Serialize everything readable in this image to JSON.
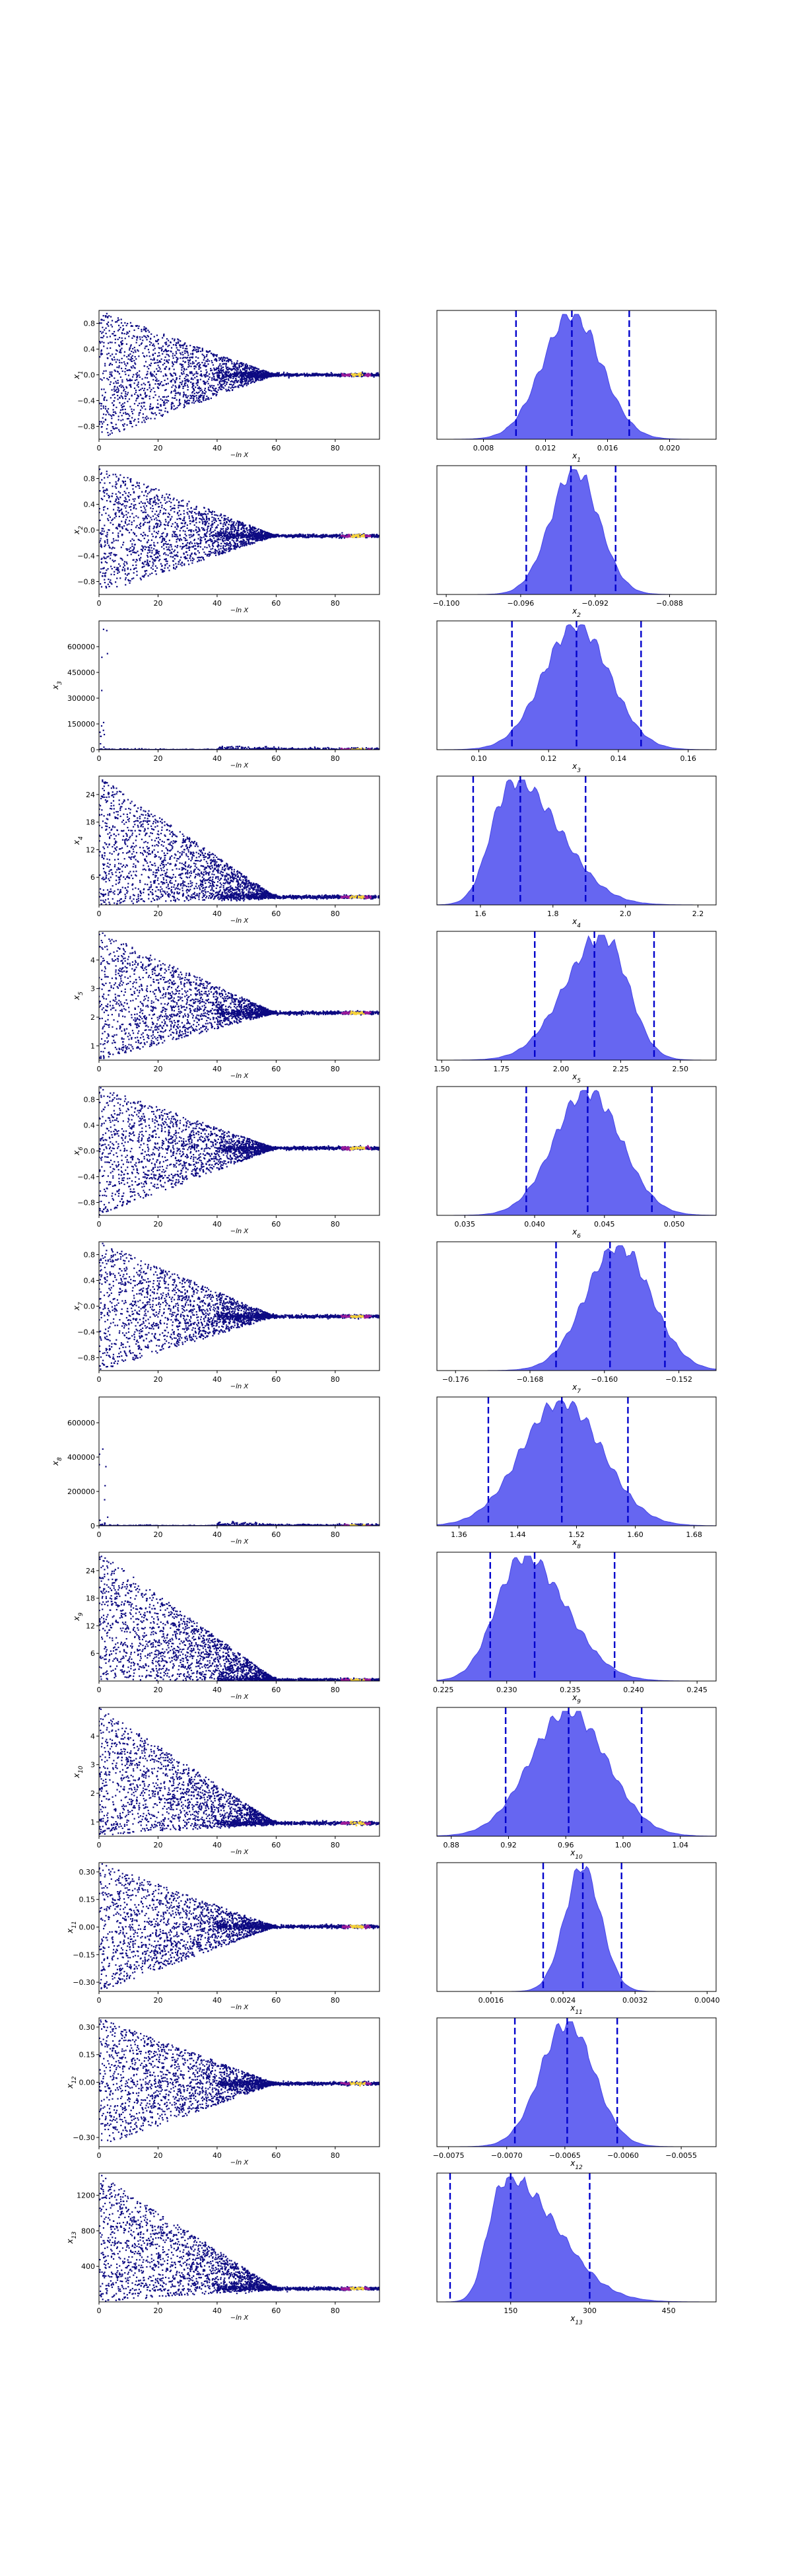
{
  "colors": {
    "trace_low": "#0d0a82",
    "trace_mid": "#9c1b9a",
    "trace_high": "#f6d33a",
    "hist_fill": "#5a5af0",
    "hist_edge": "#3636e6",
    "quantile_line": "#0000cc"
  },
  "chart_data": [
    {
      "type": "scatter",
      "param": "x1",
      "xlabel": "−ln X",
      "ylabel": "x1",
      "ylabel_sub": "1",
      "xticks": [
        0,
        20,
        40,
        60,
        80
      ],
      "yticks": [
        "0.8",
        "0.4",
        "0.0",
        "−0.4",
        "−0.8"
      ],
      "ytick_values": [
        0.8,
        0.4,
        0,
        -0.4,
        -0.8
      ],
      "xlim": [
        0,
        95
      ],
      "ylim": [
        -1,
        1
      ],
      "converged_value": 0.0
    },
    {
      "type": "area",
      "param": "x1",
      "xlabel": "x1",
      "xlabel_sub": "1",
      "xticks": [
        "0.008",
        "0.012",
        "0.016",
        "0.020"
      ],
      "xtick_values": [
        0.008,
        0.012,
        0.016,
        0.02
      ],
      "xlim": [
        0.005,
        0.023
      ],
      "mode": 0.0137,
      "sigma": 0.0019,
      "skew": 0,
      "quantiles": [
        0.0101,
        0.0137,
        0.0174
      ]
    },
    {
      "type": "scatter",
      "param": "x2",
      "xlabel": "−ln X",
      "ylabel": "x2",
      "ylabel_sub": "2",
      "xticks": [
        0,
        20,
        40,
        60,
        80
      ],
      "yticks": [
        "0.8",
        "0.4",
        "0.0",
        "−0.4",
        "−0.8"
      ],
      "ytick_values": [
        0.8,
        0.4,
        0,
        -0.4,
        -0.8
      ],
      "xlim": [
        0,
        95
      ],
      "ylim": [
        -1,
        1
      ],
      "converged_value": -0.09
    },
    {
      "type": "area",
      "param": "x2",
      "xlabel": "x2",
      "xlabel_sub": "2",
      "xticks": [
        "−0.100",
        "−0.096",
        "−0.092",
        "−0.088"
      ],
      "xtick_values": [
        -0.1,
        -0.096,
        -0.092,
        -0.088
      ],
      "xlim": [
        -0.1005,
        -0.0855
      ],
      "mode": -0.0931,
      "sigma": 0.0013,
      "skew": 0,
      "quantiles": [
        -0.0957,
        -0.0933,
        -0.0909
      ]
    },
    {
      "type": "scatter",
      "param": "x3",
      "xlabel": "−ln X",
      "ylabel": "x3",
      "ylabel_sub": "3",
      "xticks": [
        0,
        20,
        40,
        60,
        80
      ],
      "yticks": [
        "600000",
        "450000",
        "300000",
        "150000",
        "0"
      ],
      "ytick_values": [
        600000,
        450000,
        300000,
        150000,
        0
      ],
      "xlim": [
        0,
        95
      ],
      "ylim": [
        0,
        750000
      ],
      "converged_value": 0.128
    },
    {
      "type": "area",
      "param": "x3",
      "xlabel": "x3",
      "xlabel_sub": "3",
      "xticks": [
        "0.10",
        "0.12",
        "0.14",
        "0.16"
      ],
      "xtick_values": [
        0.1,
        0.12,
        0.14,
        0.16
      ],
      "xlim": [
        0.088,
        0.168
      ],
      "mode": 0.128,
      "sigma": 0.0095,
      "skew": 0,
      "quantiles": [
        0.1095,
        0.128,
        0.1465
      ]
    },
    {
      "type": "scatter",
      "param": "x4",
      "xlabel": "−ln X",
      "ylabel": "x4",
      "ylabel_sub": "4",
      "xticks": [
        0,
        20,
        40,
        60,
        80
      ],
      "yticks": [
        "24",
        "18",
        "12",
        "6"
      ],
      "ytick_values": [
        24,
        18,
        12,
        6
      ],
      "xlim": [
        0,
        95
      ],
      "ylim": [
        0,
        28
      ],
      "converged_value": 1.72
    },
    {
      "type": "area",
      "param": "x4",
      "xlabel": "x4",
      "xlabel_sub": "4",
      "xticks": [
        "1.6",
        "1.8",
        "2.0",
        "2.2"
      ],
      "xtick_values": [
        1.6,
        1.8,
        2.0,
        2.2
      ],
      "xlim": [
        1.48,
        2.25
      ],
      "mode": 1.7,
      "sigma": 0.09,
      "skew": 0.35,
      "quantiles": [
        1.58,
        1.71,
        1.89
      ]
    },
    {
      "type": "scatter",
      "param": "x5",
      "xlabel": "−ln X",
      "ylabel": "x5",
      "ylabel_sub": "5",
      "xticks": [
        0,
        20,
        40,
        60,
        80
      ],
      "yticks": [
        "4",
        "3",
        "2",
        "1"
      ],
      "ytick_values": [
        4,
        3,
        2,
        1
      ],
      "xlim": [
        0,
        95
      ],
      "ylim": [
        0.5,
        5
      ],
      "converged_value": 2.15
    },
    {
      "type": "area",
      "param": "x5",
      "xlabel": "x5",
      "xlabel_sub": "5",
      "xticks": [
        "1.50",
        "1.75",
        "2.00",
        "2.25",
        "2.50"
      ],
      "xtick_values": [
        1.5,
        1.75,
        2.0,
        2.25,
        2.5
      ],
      "xlim": [
        1.48,
        2.65
      ],
      "mode": 2.17,
      "sigma": 0.13,
      "skew": -0.2,
      "quantiles": [
        1.89,
        2.14,
        2.39
      ]
    },
    {
      "type": "scatter",
      "param": "x6",
      "xlabel": "−ln X",
      "ylabel": "x6",
      "ylabel_sub": "6",
      "xticks": [
        0,
        20,
        40,
        60,
        80
      ],
      "yticks": [
        "0.8",
        "0.4",
        "0.0",
        "−0.4",
        "−0.8"
      ],
      "ytick_values": [
        0.8,
        0.4,
        0,
        -0.4,
        -0.8
      ],
      "xlim": [
        0,
        95
      ],
      "ylim": [
        -1,
        1
      ],
      "converged_value": 0.044
    },
    {
      "type": "area",
      "param": "x6",
      "xlabel": "x6",
      "xlabel_sub": "6",
      "xticks": [
        "0.035",
        "0.040",
        "0.045",
        "0.050"
      ],
      "xtick_values": [
        0.035,
        0.04,
        0.045,
        0.05
      ],
      "xlim": [
        0.033,
        0.053
      ],
      "mode": 0.0438,
      "sigma": 0.0024,
      "skew": 0,
      "quantiles": [
        0.0394,
        0.0438,
        0.0484
      ]
    },
    {
      "type": "scatter",
      "param": "x7",
      "xlabel": "−ln X",
      "ylabel": "x7",
      "ylabel_sub": "7",
      "xticks": [
        0,
        20,
        40,
        60,
        80
      ],
      "yticks": [
        "0.8",
        "0.4",
        "0.0",
        "−0.4",
        "−0.8"
      ],
      "ytick_values": [
        0.8,
        0.4,
        0,
        -0.4,
        -0.8
      ],
      "xlim": [
        0,
        95
      ],
      "ylim": [
        -1,
        1
      ],
      "converged_value": -0.16
    },
    {
      "type": "area",
      "param": "x7",
      "xlabel": "x7",
      "xlabel_sub": "7",
      "xticks": [
        "−0.176",
        "−0.168",
        "−0.160",
        "−0.152"
      ],
      "xtick_values": [
        -0.176,
        -0.168,
        -0.16,
        -0.152
      ],
      "xlim": [
        -0.178,
        -0.148
      ],
      "mode": -0.1585,
      "sigma": 0.0035,
      "skew": 0,
      "quantiles": [
        -0.1652,
        -0.1594,
        -0.1535
      ]
    },
    {
      "type": "scatter",
      "param": "x8",
      "xlabel": "−ln X",
      "ylabel": "x8",
      "ylabel_sub": "8",
      "xticks": [
        0,
        20,
        40,
        60,
        80
      ],
      "yticks": [
        "600000",
        "400000",
        "200000",
        "0"
      ],
      "ytick_values": [
        600000,
        400000,
        200000,
        0
      ],
      "xlim": [
        0,
        95
      ],
      "ylim": [
        0,
        750000
      ],
      "converged_value": 1.5
    },
    {
      "type": "area",
      "param": "x8",
      "xlabel": "x8",
      "xlabel_sub": "8",
      "xticks": [
        "1.36",
        "1.44",
        "1.52",
        "1.60",
        "1.68"
      ],
      "xtick_values": [
        1.36,
        1.44,
        1.52,
        1.6,
        1.68
      ],
      "xlim": [
        1.33,
        1.71
      ],
      "mode": 1.5,
      "sigma": 0.055,
      "skew": 0,
      "quantiles": [
        1.4,
        1.5,
        1.59
      ]
    },
    {
      "type": "scatter",
      "param": "x9",
      "xlabel": "−ln X",
      "ylabel": "x9",
      "ylabel_sub": "9",
      "xticks": [
        0,
        20,
        40,
        60,
        80
      ],
      "yticks": [
        "24",
        "18",
        "12",
        "6"
      ],
      "ytick_values": [
        24,
        18,
        12,
        6
      ],
      "xlim": [
        0,
        95
      ],
      "ylim": [
        0,
        28
      ],
      "converged_value": 0.23
    },
    {
      "type": "area",
      "param": "x9",
      "xlabel": "x9",
      "xlabel_sub": "9",
      "xticks": [
        "0.225",
        "0.230",
        "0.235",
        "0.240",
        "0.245"
      ],
      "xtick_values": [
        0.225,
        0.23,
        0.235,
        0.24,
        0.245
      ],
      "xlim": [
        0.2245,
        0.2465
      ],
      "mode": 0.2315,
      "sigma": 0.0027,
      "skew": 0.2,
      "quantiles": [
        0.2287,
        0.2322,
        0.2385
      ]
    },
    {
      "type": "scatter",
      "param": "x10",
      "xlabel": "−ln X",
      "ylabel": "x10",
      "ylabel_sub": "10",
      "xticks": [
        0,
        20,
        40,
        60,
        80
      ],
      "yticks": [
        "4",
        "3",
        "2",
        "1"
      ],
      "ytick_values": [
        4,
        3,
        2,
        1
      ],
      "xlim": [
        0,
        95
      ],
      "ylim": [
        0.5,
        5
      ],
      "converged_value": 0.96
    },
    {
      "type": "area",
      "param": "x10",
      "xlabel": "x10",
      "xlabel_sub": "10",
      "xticks": [
        "0.88",
        "0.92",
        "0.96",
        "1.00",
        "1.04"
      ],
      "xtick_values": [
        0.88,
        0.92,
        0.96,
        1.0,
        1.04
      ],
      "xlim": [
        0.87,
        1.065
      ],
      "mode": 0.962,
      "sigma": 0.027,
      "skew": 0,
      "quantiles": [
        0.918,
        0.962,
        1.013
      ]
    },
    {
      "type": "scatter",
      "param": "x11",
      "xlabel": "−ln X",
      "ylabel": "x11",
      "ylabel_sub": "11",
      "xticks": [
        0,
        20,
        40,
        60,
        80
      ],
      "yticks": [
        "0.30",
        "0.15",
        "0.00",
        "−0.15",
        "−0.30"
      ],
      "ytick_values": [
        0.3,
        0.15,
        0,
        -0.15,
        -0.3
      ],
      "xlim": [
        0,
        95
      ],
      "ylim": [
        -0.35,
        0.35
      ],
      "converged_value": 0.0026
    },
    {
      "type": "area",
      "param": "x11",
      "xlabel": "x11",
      "xlabel_sub": "11",
      "xticks": [
        "0.0016",
        "0.0024",
        "0.0032",
        "0.0040"
      ],
      "xtick_values": [
        0.0016,
        0.0024,
        0.0032,
        0.004
      ],
      "xlim": [
        0.001,
        0.0041
      ],
      "mode": 0.00262,
      "sigma": 0.0002,
      "skew": 0,
      "quantiles": [
        0.00218,
        0.00262,
        0.00305
      ]
    },
    {
      "type": "scatter",
      "param": "x12",
      "xlabel": "−ln X",
      "ylabel": "x12",
      "ylabel_sub": "12",
      "xticks": [
        0,
        20,
        40,
        60,
        80
      ],
      "yticks": [
        "0.30",
        "0.15",
        "0.00",
        "−0.30"
      ],
      "ytick_values": [
        0.3,
        0.15,
        0,
        -0.3
      ],
      "xlim": [
        0,
        95
      ],
      "ylim": [
        -0.35,
        0.35
      ],
      "converged_value": -0.0065
    },
    {
      "type": "area",
      "param": "x12",
      "xlabel": "x12",
      "xlabel_sub": "12",
      "xticks": [
        "−0.0075",
        "−0.0070",
        "−0.0065",
        "−0.0060",
        "−0.0055"
      ],
      "xtick_values": [
        -0.0075,
        -0.007,
        -0.0065,
        -0.006,
        -0.0055
      ],
      "xlim": [
        -0.0076,
        -0.0052
      ],
      "mode": -0.00648,
      "sigma": 0.00023,
      "skew": 0,
      "quantiles": [
        -0.00693,
        -0.00648,
        -0.00605
      ]
    },
    {
      "type": "scatter",
      "param": "x13",
      "xlabel": "−ln X",
      "ylabel": "x13",
      "ylabel_sub": "13",
      "xticks": [
        0,
        20,
        40,
        60,
        80
      ],
      "yticks": [
        "1200",
        "800",
        "400"
      ],
      "ytick_values": [
        1200,
        800,
        400
      ],
      "xlim": [
        0,
        95
      ],
      "ylim": [
        0,
        1450
      ],
      "converged_value": 150
    },
    {
      "type": "area",
      "param": "x13",
      "xlabel": "x13",
      "xlabel_sub": "13",
      "xticks": [
        "150",
        "300",
        "450"
      ],
      "xtick_values": [
        150,
        300,
        450
      ],
      "xlim": [
        10,
        540
      ],
      "mode": 150,
      "sigma": 60,
      "skew": 0.5,
      "quantiles": [
        35,
        150,
        300
      ]
    }
  ]
}
